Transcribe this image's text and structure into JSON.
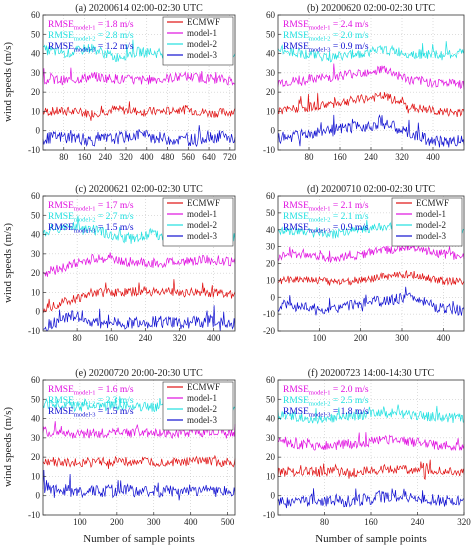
{
  "figure": {
    "ylabel": "wind speeds (m/s)",
    "xlabel": "Number of sample points"
  },
  "colors": {
    "ECMWF": "#e01010",
    "model-1": "#e010e0",
    "model-2": "#20e0e0",
    "model-3": "#1010d0"
  },
  "chart_data": [
    {
      "type": "line",
      "title": "(a) 20200614 02:00-02:30 UTC",
      "xlim": [
        0,
        740
      ],
      "xticks": [
        80,
        160,
        240,
        320,
        400,
        480,
        560,
        640,
        720
      ],
      "ylim": [
        -10,
        60
      ],
      "yticks": [
        -10,
        0,
        10,
        20,
        30,
        40,
        50,
        60
      ],
      "rmse": [
        {
          "label": "RMSE",
          "sub": "model-1",
          "value": "= 1.8 m/s",
          "color": "#e010e0"
        },
        {
          "label": "RMSE",
          "sub": "model-2",
          "value": "= 2.8 m/s",
          "color": "#20e0e0"
        },
        {
          "label": "RMSE",
          "sub": "model-3",
          "value": "= 1.2 m/s",
          "color": "#1010d0"
        }
      ],
      "legend": [
        "ECMWF",
        "model-1",
        "model-2",
        "model-3"
      ],
      "legend_loc": "top-right",
      "series": [
        {
          "name": "ECMWF",
          "values": [
            10,
            10,
            9,
            11,
            10,
            10,
            11,
            9,
            10
          ]
        },
        {
          "name": "model-1",
          "values": [
            27,
            26,
            28,
            27,
            26,
            27,
            28,
            27,
            26
          ]
        },
        {
          "name": "model-2",
          "values": [
            42,
            40,
            43,
            38,
            41,
            40,
            39,
            42,
            40
          ]
        },
        {
          "name": "model-3",
          "values": [
            -4,
            -3,
            -5,
            -4,
            -2,
            -4,
            -5,
            -3,
            -4
          ]
        }
      ]
    },
    {
      "type": "line",
      "title": "(b) 20200620 02:00-02:30 UTC",
      "xlim": [
        0,
        480
      ],
      "xticks": [
        80,
        160,
        240,
        320,
        400
      ],
      "ylim": [
        -10,
        60
      ],
      "yticks": [
        -10,
        0,
        10,
        20,
        30,
        40,
        50,
        60
      ],
      "rmse": [
        {
          "label": "RMSE",
          "sub": "model-1",
          "value": "= 2.4 m/s",
          "color": "#e010e0"
        },
        {
          "label": "RMSE",
          "sub": "model-2",
          "value": "= 2.0 m/s",
          "color": "#20e0e0"
        },
        {
          "label": "RMSE",
          "sub": "model-3",
          "value": "= 0.9 m/s",
          "color": "#1010d0"
        }
      ],
      "legend": [],
      "series": [
        {
          "name": "ECMWF",
          "values": [
            10,
            12,
            14,
            16,
            18,
            12,
            10,
            9
          ]
        },
        {
          "name": "model-1",
          "values": [
            25,
            26,
            28,
            30,
            32,
            26,
            25,
            24
          ]
        },
        {
          "name": "model-2",
          "values": [
            42,
            40,
            38,
            40,
            42,
            40,
            39,
            40
          ]
        },
        {
          "name": "model-3",
          "values": [
            -4,
            -2,
            0,
            2,
            4,
            -2,
            -6,
            -5
          ]
        }
      ]
    },
    {
      "type": "line",
      "title": "(c) 20200621 02:00-02:30 UTC",
      "xlim": [
        0,
        450
      ],
      "xticks": [
        80,
        160,
        240,
        320,
        400
      ],
      "ylim": [
        -10,
        60
      ],
      "yticks": [
        -10,
        0,
        10,
        20,
        30,
        40,
        50,
        60
      ],
      "rmse": [
        {
          "label": "RMSE",
          "sub": "model-1",
          "value": "= 1.7 m/s",
          "color": "#e010e0"
        },
        {
          "label": "RMSE",
          "sub": "model-2",
          "value": "= 2.7 m/s",
          "color": "#20e0e0"
        },
        {
          "label": "RMSE",
          "sub": "model-3",
          "value": "= 1.5 m/s",
          "color": "#1010d0"
        }
      ],
      "legend": [
        "ECMWF",
        "model-1",
        "model-2",
        "model-3"
      ],
      "legend_loc": "top-right",
      "series": [
        {
          "name": "ECMWF",
          "values": [
            2,
            6,
            10,
            10,
            11,
            10,
            10,
            9
          ]
        },
        {
          "name": "model-1",
          "values": [
            20,
            24,
            28,
            26,
            25,
            26,
            27,
            26
          ]
        },
        {
          "name": "model-2",
          "values": [
            40,
            45,
            42,
            38,
            40,
            39,
            40,
            38
          ]
        },
        {
          "name": "model-3",
          "values": [
            -8,
            -2,
            -6,
            -6,
            -5,
            -6,
            -5,
            -6
          ]
        }
      ]
    },
    {
      "type": "line",
      "title": "(d) 20200710 02:00-02:30 UTC",
      "xlim": [
        0,
        450
      ],
      "xticks": [
        100,
        200,
        300,
        400
      ],
      "ylim": [
        -20,
        60
      ],
      "yticks": [
        -20,
        -10,
        0,
        10,
        20,
        30,
        40,
        50,
        60
      ],
      "rmse": [
        {
          "label": "RMSE",
          "sub": "model-1",
          "value": "= 2.1 m/s",
          "color": "#e010e0"
        },
        {
          "label": "RMSE",
          "sub": "model-2",
          "value": "= 2.1 m/s",
          "color": "#20e0e0"
        },
        {
          "label": "RMSE",
          "sub": "model-3",
          "value": "= 0.9 m/s",
          "color": "#1010d0"
        }
      ],
      "legend": [
        "ECMWF",
        "model-1",
        "model-2",
        "model-3"
      ],
      "legend_loc": "top-right",
      "series": [
        {
          "name": "ECMWF",
          "values": [
            10,
            11,
            9,
            10,
            12,
            14,
            10,
            9
          ]
        },
        {
          "name": "model-1",
          "values": [
            24,
            26,
            23,
            25,
            28,
            30,
            26,
            24
          ]
        },
        {
          "name": "model-2",
          "values": [
            40,
            38,
            37,
            40,
            42,
            45,
            40,
            38
          ]
        },
        {
          "name": "model-3",
          "values": [
            -5,
            -6,
            -8,
            -4,
            -2,
            0,
            -6,
            -8
          ]
        }
      ]
    },
    {
      "type": "line",
      "title": "(e) 20200720 20:00-20:30 UTC",
      "xlim": [
        0,
        520
      ],
      "xticks": [
        100,
        200,
        300,
        400,
        500
      ],
      "ylim": [
        -10,
        60
      ],
      "yticks": [
        -10,
        0,
        10,
        20,
        30,
        40,
        50,
        60
      ],
      "rmse": [
        {
          "label": "RMSE",
          "sub": "model-1",
          "value": "= 1.6 m/s",
          "color": "#e010e0"
        },
        {
          "label": "RMSE",
          "sub": "model-2",
          "value": "= 2.3 m/s",
          "color": "#20e0e0"
        },
        {
          "label": "RMSE",
          "sub": "model-3",
          "value": "= 1.5 m/s",
          "color": "#1010d0"
        }
      ],
      "legend": [
        "ECMWF",
        "model-1",
        "model-2",
        "model-3"
      ],
      "legend_loc": "top-right",
      "series": [
        {
          "name": "ECMWF",
          "values": [
            18,
            17,
            18,
            17,
            18,
            17
          ]
        },
        {
          "name": "model-1",
          "values": [
            33,
            32,
            33,
            32,
            33,
            32
          ]
        },
        {
          "name": "model-2",
          "values": [
            48,
            46,
            47,
            46,
            47,
            46
          ]
        },
        {
          "name": "model-3",
          "values": [
            4,
            2,
            3,
            2,
            3,
            2
          ]
        }
      ]
    },
    {
      "type": "line",
      "title": "(f) 20200723 14:00-14:30 UTC",
      "xlim": [
        0,
        320
      ],
      "xticks": [
        80,
        160,
        240,
        320
      ],
      "ylim": [
        -10,
        60
      ],
      "yticks": [
        -10,
        0,
        10,
        20,
        30,
        40,
        50,
        60
      ],
      "rmse": [
        {
          "label": "RMSE",
          "sub": "model-1",
          "value": "= 2.0 m/s",
          "color": "#e010e0"
        },
        {
          "label": "RMSE",
          "sub": "model-2",
          "value": "= 2.5 m/s",
          "color": "#20e0e0"
        },
        {
          "label": "RMSE",
          "sub": "model-3",
          "value": "= 1.8 m/s",
          "color": "#1010d0"
        }
      ],
      "legend": [],
      "series": [
        {
          "name": "ECMWF",
          "values": [
            12,
            13,
            12,
            14,
            13,
            12
          ]
        },
        {
          "name": "model-1",
          "values": [
            28,
            26,
            27,
            29,
            27,
            25
          ]
        },
        {
          "name": "model-2",
          "values": [
            42,
            40,
            41,
            43,
            41,
            40
          ]
        },
        {
          "name": "model-3",
          "values": [
            -4,
            -2,
            -3,
            0,
            -2,
            -3
          ]
        }
      ]
    }
  ]
}
